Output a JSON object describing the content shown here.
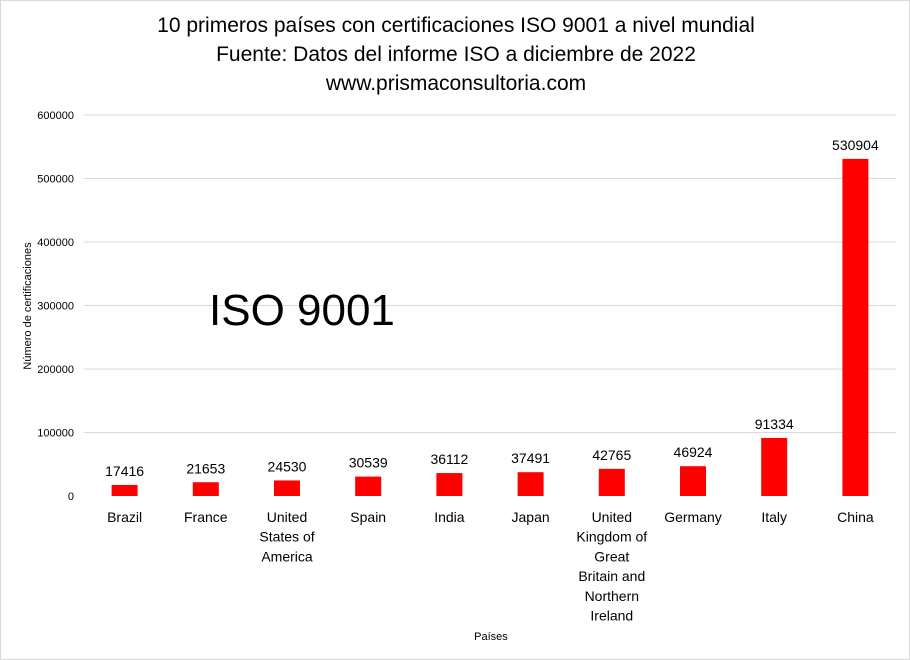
{
  "title_lines": [
    "10 primeros países con certificaciones ISO 9001 a nivel mundial",
    "Fuente: Datos del informe ISO  a diciembre de 2022",
    "www.prismaconsultoria.com"
  ],
  "chart_data": {
    "type": "bar",
    "title": "10 primeros países con certificaciones ISO 9001 a nivel mundial",
    "subtitle": "Fuente: Datos del informe ISO  a diciembre de 2022",
    "source": "www.prismaconsultoria.com",
    "xlabel": "Países",
    "ylabel": "Número de certificaciones",
    "annotation": "ISO 9001",
    "categories": [
      [
        "Brazil"
      ],
      [
        "France"
      ],
      [
        "United",
        "States of",
        "America"
      ],
      [
        "Spain"
      ],
      [
        "India"
      ],
      [
        "Japan"
      ],
      [
        "United",
        "Kingdom of",
        "Great",
        "Britain and",
        "Northern",
        "Ireland"
      ],
      [
        "Germany"
      ],
      [
        "Italy"
      ],
      [
        "China"
      ]
    ],
    "values": [
      17416,
      21653,
      24530,
      30539,
      36112,
      37491,
      42765,
      46924,
      91334,
      530904
    ],
    "ylim": [
      0,
      600000
    ],
    "yticks": [
      0,
      100000,
      200000,
      300000,
      400000,
      500000,
      600000
    ],
    "bar_color": "#ff0000",
    "grid": true,
    "gridline_color": "#d9d9d9",
    "legend": "none"
  }
}
